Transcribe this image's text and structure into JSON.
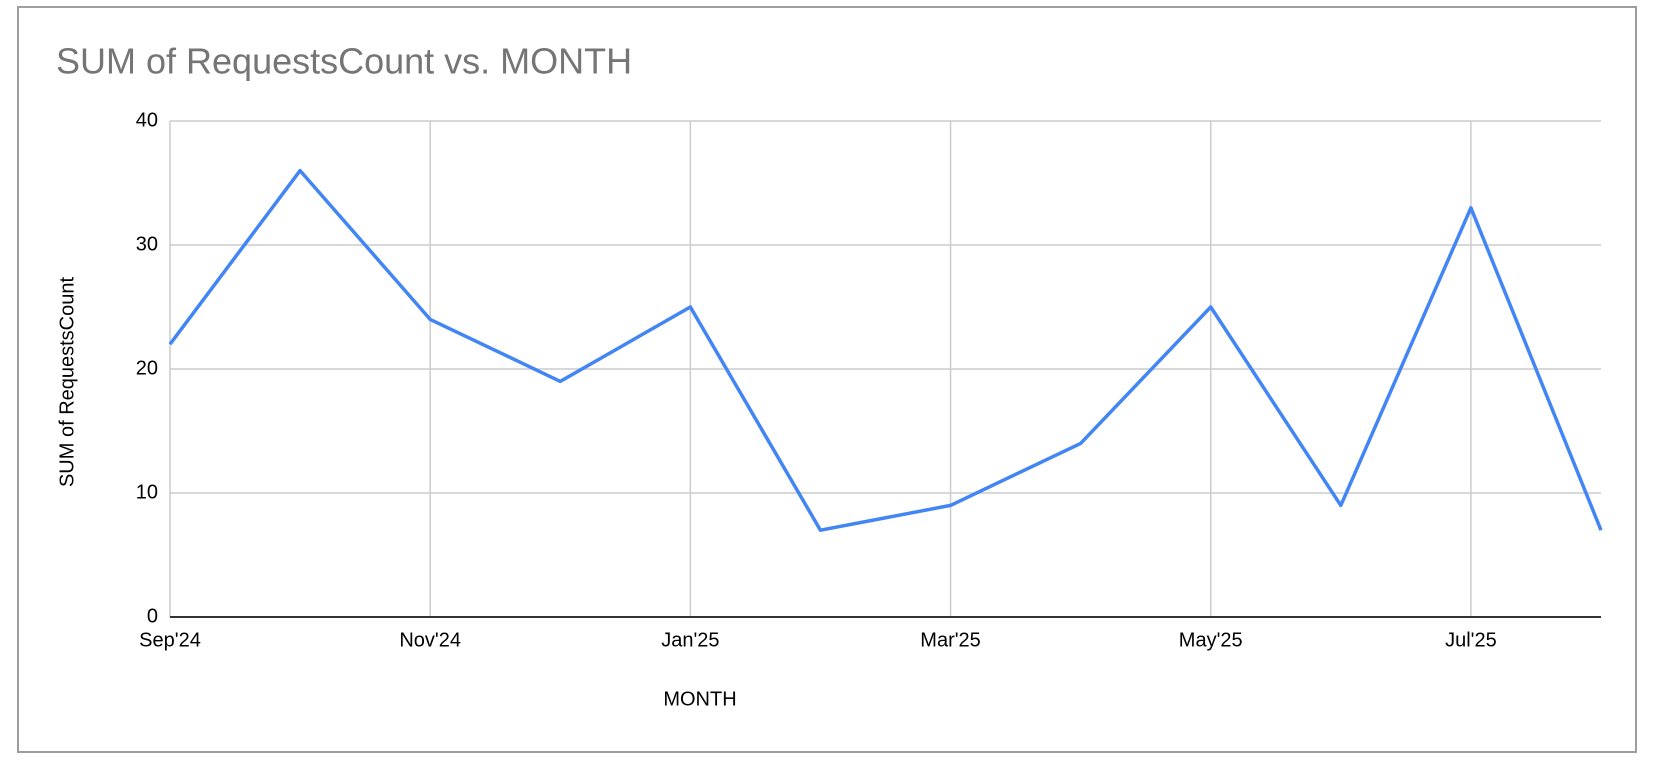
{
  "chart_data": {
    "type": "line",
    "title": "SUM of RequestsCount vs. MONTH",
    "x_label": "MONTH",
    "y_label": "SUM of RequestsCount",
    "categories": [
      "Sep'24",
      null,
      "Nov'24",
      null,
      "Jan'25",
      null,
      "Mar'25",
      null,
      "May'25",
      null,
      "Jul'25",
      null
    ],
    "series": [
      {
        "name": "SUM of RequestsCount",
        "color": "#4285f4",
        "values": [
          22,
          36,
          24,
          19,
          25,
          7,
          9,
          14,
          25,
          9,
          33,
          7
        ]
      }
    ],
    "ylim": [
      0,
      40
    ],
    "yticks": [
      0,
      10,
      20,
      30,
      40
    ],
    "grid": true
  }
}
